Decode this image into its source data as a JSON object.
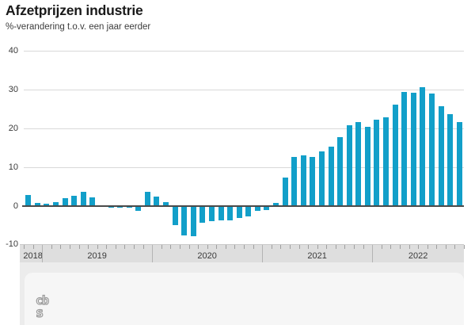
{
  "header": {
    "title": "Afzetprijzen industrie",
    "subtitle": "%-verandering t.o.v. een jaar eerder"
  },
  "footer": {
    "logo": {
      "line1": "cb",
      "line2": "s"
    }
  },
  "colors": {
    "bar": "#129fc9",
    "grid": "#d9d9d9",
    "zero_line": "#4a4a4a",
    "axis_band_bg": "#dedede",
    "minor_tick": "#9f9f9f",
    "year_separator": "#b3b3b3",
    "footer_bg": "#ececec",
    "panel_bg": "#f6f6f6",
    "logo_stroke": "#9a9a9a",
    "title_text": "#1a1a1a",
    "axis_text": "#3a3a3a"
  },
  "chart_data": {
    "type": "bar",
    "title": "Afzetprijzen industrie",
    "ylabel": "%-verandering t.o.v. een jaar eerder",
    "unit": "%",
    "ylim": [
      -10,
      40
    ],
    "yticks": [
      40,
      30,
      20,
      10,
      0,
      -10
    ],
    "grid": true,
    "legend": "none",
    "year_labels": [
      "2018",
      "2019",
      "2020",
      "2021",
      "2022"
    ],
    "x": [
      "2018-11",
      "2018-12",
      "2019-01",
      "2019-02",
      "2019-03",
      "2019-04",
      "2019-05",
      "2019-06",
      "2019-07",
      "2019-08",
      "2019-09",
      "2019-10",
      "2019-11",
      "2019-12",
      "2020-01",
      "2020-02",
      "2020-03",
      "2020-04",
      "2020-05",
      "2020-06",
      "2020-07",
      "2020-08",
      "2020-09",
      "2020-10",
      "2020-11",
      "2020-12",
      "2021-01",
      "2021-02",
      "2021-03",
      "2021-04",
      "2021-05",
      "2021-06",
      "2021-07",
      "2021-08",
      "2021-09",
      "2021-10",
      "2021-11",
      "2021-12",
      "2022-01",
      "2022-02",
      "2022-03",
      "2022-04",
      "2022-05",
      "2022-06",
      "2022-07",
      "2022-08",
      "2022-09",
      "2022-10"
    ],
    "values": [
      2.7,
      0.7,
      0.5,
      1.0,
      1.9,
      2.5,
      3.6,
      2.1,
      0.1,
      -0.6,
      -0.5,
      -0.5,
      -1.3,
      3.5,
      2.4,
      0.9,
      -5.0,
      -7.6,
      -7.8,
      -4.4,
      -4.0,
      -3.8,
      -3.8,
      -3.2,
      -2.8,
      -1.4,
      -1.2,
      0.7,
      7.2,
      12.5,
      13.0,
      12.6,
      14.0,
      15.3,
      17.6,
      20.8,
      21.5,
      20.3,
      22.2,
      22.7,
      26.1,
      29.3,
      29.2,
      30.5,
      29.0,
      25.7,
      23.7,
      21.5
    ]
  }
}
